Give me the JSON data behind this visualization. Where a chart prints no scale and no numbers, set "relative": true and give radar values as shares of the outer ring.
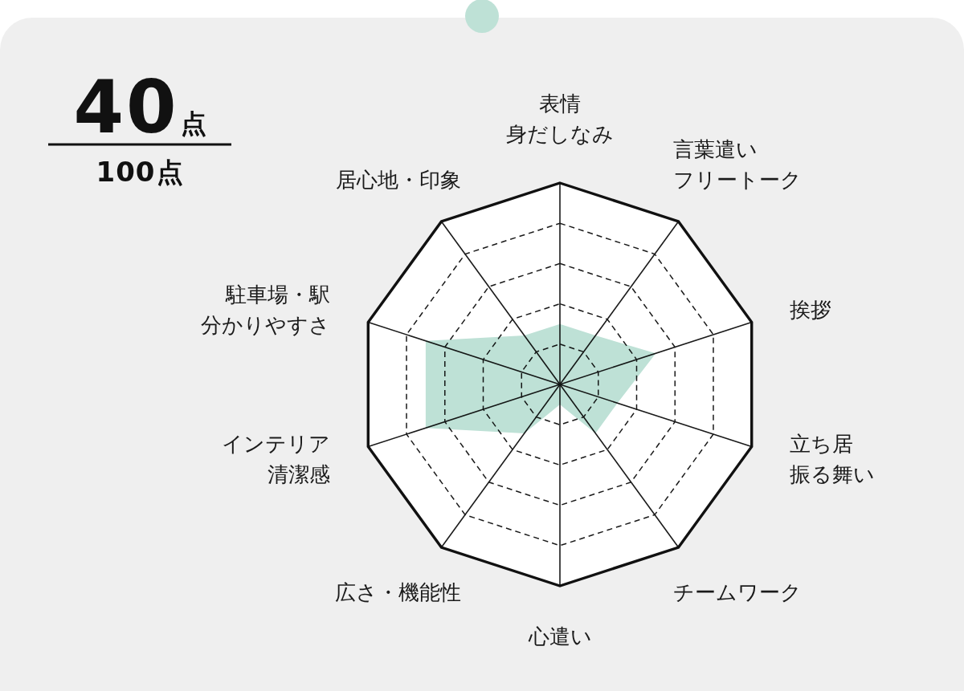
{
  "chart_data": {
    "type": "radar",
    "categories": [
      "表情身だしなみ",
      "言葉遣いフリートーク",
      "挨拶",
      "立ち居振る舞い",
      "チームワーク",
      "心遣い",
      "広さ・機能性",
      "インテリア清潔感",
      "駐車場・駅分かりやすさ",
      "居心地・印象"
    ],
    "series": [
      {
        "color": "#bee1d6",
        "values": [
          0.3,
          0.3,
          0.5,
          0.3,
          0.3,
          0.1,
          0.3,
          0.7,
          0.7,
          0.3
        ]
      }
    ],
    "relative": true,
    "grid": true,
    "annotations": [
      "40点",
      "100点"
    ]
  }
}
